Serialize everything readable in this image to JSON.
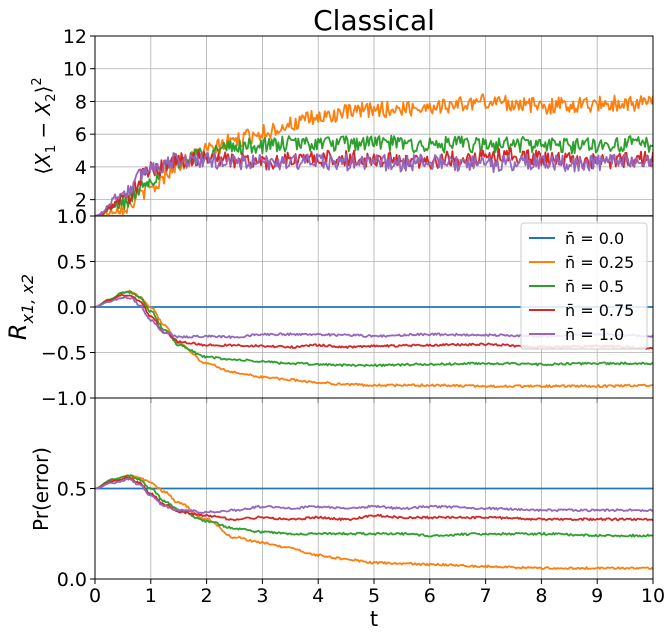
{
  "chart_data": [
    {
      "type": "line",
      "title": "Classical",
      "ylabel": "⟨X₁ − X₂⟩²",
      "xlabel": "",
      "xlim": [
        0,
        10
      ],
      "ylim": [
        1.0,
        12
      ],
      "yticks": [
        "1.0",
        "2",
        "4",
        "6",
        "8",
        "10",
        "12"
      ],
      "ytick_values": [
        1.0,
        2,
        4,
        6,
        8,
        10,
        12
      ],
      "grid": true,
      "series": [
        {
          "name": "n̄ = 0.0",
          "color": "#1f77b4",
          "x": [
            0,
            10
          ],
          "y": [
            1.0,
            1.0
          ]
        },
        {
          "name": "n̄ = 0.25",
          "color": "#ff7f0e",
          "x": [
            0,
            0.5,
            1,
            1.5,
            2,
            2.5,
            3,
            3.5,
            4,
            4.5,
            5,
            5.5,
            6,
            6.5,
            7,
            7.5,
            8,
            8.5,
            9,
            9.5,
            10
          ],
          "y": [
            1.0,
            1.5,
            2.7,
            4.2,
            5.0,
            5.6,
            6.1,
            6.6,
            7.0,
            7.3,
            7.5,
            7.55,
            7.7,
            7.8,
            8.0,
            7.9,
            7.7,
            7.8,
            7.85,
            7.9,
            7.9
          ]
        },
        {
          "name": "n̄ = 0.5",
          "color": "#2ca02c",
          "x": [
            0,
            0.5,
            1,
            1.5,
            2,
            2.5,
            3,
            3.5,
            4,
            4.5,
            5,
            5.5,
            6,
            6.5,
            7,
            7.5,
            8,
            8.5,
            9,
            9.5,
            10
          ],
          "y": [
            1.0,
            1.8,
            3.3,
            4.4,
            4.9,
            5.2,
            5.3,
            5.4,
            5.45,
            5.4,
            5.5,
            5.4,
            5.3,
            5.4,
            5.3,
            5.4,
            5.35,
            5.3,
            5.35,
            5.4,
            5.4
          ]
        },
        {
          "name": "n̄ = 0.75",
          "color": "#d62728",
          "x": [
            0,
            0.5,
            1,
            1.5,
            2,
            2.5,
            3,
            3.5,
            4,
            4.5,
            5,
            5.5,
            6,
            6.5,
            7,
            7.5,
            8,
            8.5,
            9,
            9.5,
            10
          ],
          "y": [
            1.0,
            2.0,
            3.8,
            4.4,
            4.6,
            4.4,
            4.3,
            4.4,
            4.5,
            4.5,
            4.45,
            4.4,
            4.35,
            4.5,
            4.6,
            4.7,
            4.5,
            4.4,
            4.3,
            4.45,
            4.55
          ]
        },
        {
          "name": "n̄ = 1.0",
          "color": "#9467bd",
          "x": [
            0,
            0.5,
            1,
            1.5,
            2,
            2.5,
            3,
            3.5,
            4,
            4.5,
            5,
            5.5,
            6,
            6.5,
            7,
            7.5,
            8,
            8.5,
            9,
            9.5,
            10
          ],
          "y": [
            1.0,
            2.4,
            4.0,
            4.4,
            4.4,
            4.3,
            4.25,
            4.3,
            4.3,
            4.25,
            4.3,
            4.2,
            4.3,
            4.2,
            4.15,
            4.25,
            4.3,
            4.2,
            4.25,
            4.3,
            4.35
          ]
        }
      ]
    },
    {
      "type": "line",
      "title": "",
      "ylabel": "R_{x1,x2}",
      "xlabel": "",
      "xlim": [
        0,
        10
      ],
      "ylim": [
        -1.0,
        1.0
      ],
      "yticks": [
        "−1.0",
        "−0.5",
        "0.0",
        "0.5",
        "1.0"
      ],
      "ytick_values": [
        -1.0,
        -0.5,
        0.0,
        0.5,
        1.0
      ],
      "grid": true,
      "legend": "top-right",
      "series": [
        {
          "name": "n̄ = 0.0",
          "color": "#1f77b4",
          "x": [
            0,
            10
          ],
          "y": [
            0.0,
            0.0
          ]
        },
        {
          "name": "n̄ = 0.25",
          "color": "#ff7f0e",
          "x": [
            0,
            0.25,
            0.5,
            0.65,
            0.8,
            1,
            1.25,
            1.5,
            2,
            2.5,
            3,
            3.5,
            4,
            4.5,
            5,
            6,
            7,
            8,
            9,
            10
          ],
          "y": [
            0.0,
            0.08,
            0.15,
            0.17,
            0.12,
            0.0,
            -0.2,
            -0.4,
            -0.62,
            -0.72,
            -0.77,
            -0.8,
            -0.83,
            -0.85,
            -0.86,
            -0.86,
            -0.87,
            -0.87,
            -0.87,
            -0.86
          ]
        },
        {
          "name": "n̄ = 0.5",
          "color": "#2ca02c",
          "x": [
            0,
            0.25,
            0.5,
            0.65,
            0.8,
            1,
            1.25,
            1.5,
            2,
            2.5,
            3,
            3.5,
            4,
            4.5,
            5,
            6,
            7,
            8,
            9,
            10
          ],
          "y": [
            0.0,
            0.08,
            0.16,
            0.16,
            0.1,
            -0.05,
            -0.25,
            -0.42,
            -0.55,
            -0.58,
            -0.6,
            -0.62,
            -0.63,
            -0.64,
            -0.64,
            -0.63,
            -0.62,
            -0.63,
            -0.62,
            -0.62
          ]
        },
        {
          "name": "n̄ = 0.75",
          "color": "#d62728",
          "x": [
            0,
            0.25,
            0.5,
            0.65,
            0.8,
            1,
            1.25,
            1.5,
            2,
            2.5,
            3,
            3.5,
            4,
            4.5,
            5,
            6,
            7,
            8,
            9,
            10
          ],
          "y": [
            0.0,
            0.07,
            0.13,
            0.13,
            0.06,
            -0.1,
            -0.28,
            -0.38,
            -0.42,
            -0.42,
            -0.43,
            -0.44,
            -0.42,
            -0.44,
            -0.43,
            -0.42,
            -0.41,
            -0.44,
            -0.43,
            -0.45
          ]
        },
        {
          "name": "n̄ = 1.0",
          "color": "#9467bd",
          "x": [
            0,
            0.25,
            0.5,
            0.65,
            0.8,
            1,
            1.25,
            1.5,
            2,
            2.5,
            3,
            3.5,
            4,
            4.5,
            5,
            6,
            7,
            8,
            9,
            10
          ],
          "y": [
            0.0,
            0.06,
            0.1,
            0.09,
            0.02,
            -0.15,
            -0.28,
            -0.33,
            -0.32,
            -0.33,
            -0.3,
            -0.3,
            -0.3,
            -0.31,
            -0.32,
            -0.3,
            -0.31,
            -0.32,
            -0.3,
            -0.32
          ]
        }
      ]
    },
    {
      "type": "line",
      "title": "",
      "ylabel": "Pr(error)",
      "xlabel": "t",
      "xlim": [
        0,
        10
      ],
      "ylim": [
        0.0,
        1.0
      ],
      "yticks": [
        "0.0",
        "0.5"
      ],
      "ytick_values": [
        0.0,
        0.5
      ],
      "xticks": [
        "0",
        "1",
        "2",
        "3",
        "4",
        "5",
        "6",
        "7",
        "8",
        "9",
        "10"
      ],
      "xtick_values": [
        0,
        1,
        2,
        3,
        4,
        5,
        6,
        7,
        8,
        9,
        10
      ],
      "grid": true,
      "series": [
        {
          "name": "n̄ = 0.0",
          "color": "#1f77b4",
          "x": [
            0,
            10
          ],
          "y": [
            0.5,
            0.5
          ]
        },
        {
          "name": "n̄ = 0.25",
          "color": "#ff7f0e",
          "x": [
            0,
            0.3,
            0.6,
            0.8,
            1,
            1.25,
            1.5,
            2,
            2.5,
            3,
            3.5,
            4,
            4.5,
            5,
            5.5,
            6,
            7,
            8,
            9,
            10
          ],
          "y": [
            0.5,
            0.54,
            0.57,
            0.56,
            0.53,
            0.48,
            0.42,
            0.33,
            0.23,
            0.2,
            0.17,
            0.13,
            0.11,
            0.09,
            0.085,
            0.08,
            0.07,
            0.06,
            0.06,
            0.06
          ]
        },
        {
          "name": "n̄ = 0.5",
          "color": "#2ca02c",
          "x": [
            0,
            0.3,
            0.6,
            0.8,
            1,
            1.25,
            1.5,
            2,
            2.5,
            3,
            3.5,
            4,
            4.5,
            5,
            5.5,
            6,
            7,
            8,
            9,
            10
          ],
          "y": [
            0.5,
            0.55,
            0.57,
            0.55,
            0.5,
            0.43,
            0.38,
            0.32,
            0.28,
            0.26,
            0.25,
            0.25,
            0.25,
            0.25,
            0.25,
            0.24,
            0.25,
            0.25,
            0.24,
            0.24
          ]
        },
        {
          "name": "n̄ = 0.75",
          "color": "#d62728",
          "x": [
            0,
            0.3,
            0.6,
            0.8,
            1,
            1.25,
            1.5,
            2,
            2.5,
            3,
            3.5,
            4,
            4.5,
            5,
            5.5,
            6,
            7,
            8,
            9,
            10
          ],
          "y": [
            0.5,
            0.54,
            0.56,
            0.53,
            0.47,
            0.41,
            0.37,
            0.35,
            0.33,
            0.34,
            0.33,
            0.34,
            0.33,
            0.35,
            0.34,
            0.34,
            0.34,
            0.33,
            0.33,
            0.33
          ]
        },
        {
          "name": "n̄ = 1.0",
          "color": "#9467bd",
          "x": [
            0,
            0.3,
            0.6,
            0.8,
            1,
            1.25,
            1.5,
            2,
            2.5,
            3,
            3.5,
            4,
            4.5,
            5,
            5.5,
            6,
            7,
            8,
            9,
            10
          ],
          "y": [
            0.5,
            0.53,
            0.55,
            0.52,
            0.46,
            0.4,
            0.38,
            0.37,
            0.38,
            0.4,
            0.39,
            0.4,
            0.39,
            0.4,
            0.39,
            0.4,
            0.39,
            0.38,
            0.38,
            0.38
          ]
        }
      ]
    }
  ]
}
